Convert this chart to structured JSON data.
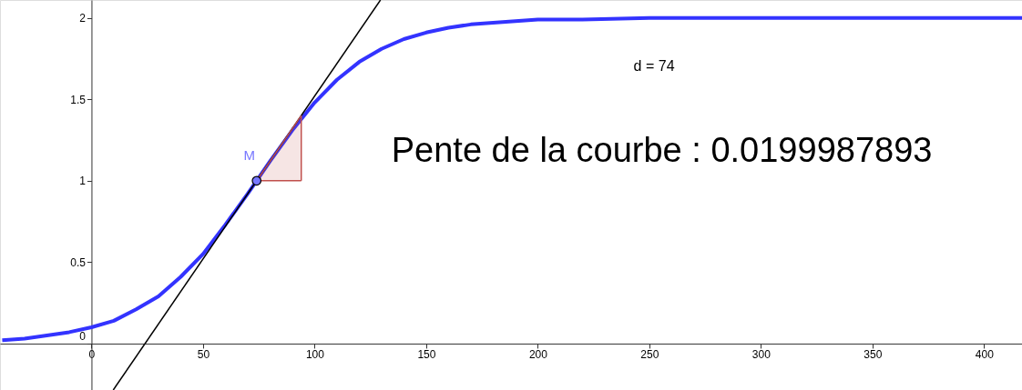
{
  "chart_data": {
    "type": "line",
    "xlim": [
      -41,
      417
    ],
    "ylim": [
      -0.285,
      2.11
    ],
    "xticks": [
      0,
      50,
      100,
      150,
      200,
      250,
      300,
      350,
      400
    ],
    "yticks": [
      0,
      0.5,
      1,
      1.5,
      2
    ],
    "grid": false,
    "line_style": "solid",
    "marker": "none",
    "series": [
      {
        "color": "#3333ff",
        "x": [
          -40,
          -30,
          -20,
          -10,
          0,
          10,
          20,
          30,
          40,
          50,
          60,
          70,
          74,
          80,
          90,
          100,
          110,
          120,
          130,
          140,
          150,
          160,
          170,
          180,
          200,
          220,
          250,
          300,
          350,
          417
        ],
        "values": [
          0.02,
          0.03,
          0.05,
          0.07,
          0.1,
          0.14,
          0.21,
          0.29,
          0.41,
          0.55,
          0.73,
          0.92,
          1,
          1.12,
          1.31,
          1.48,
          1.62,
          1.73,
          1.81,
          1.87,
          1.91,
          1.94,
          1.96,
          1.97,
          1.99,
          1.99,
          2,
          2,
          2,
          2
        ]
      },
      {
        "color": "#000000",
        "x": [
          9.75,
          129.5
        ],
        "values": [
          -0.285,
          2.11
        ]
      },
      {
        "color": "#c0504d",
        "x": [
          74,
          94
        ],
        "values": [
          1,
          1.4
        ],
        "lower": [
          1,
          1
        ],
        "upper": [
          1,
          1.4
        ]
      },
      {
        "color": "#c0504d",
        "x": [
          74,
          94
        ],
        "values": [
          1,
          1
        ]
      },
      {
        "color": "#c0504d",
        "x": [
          94,
          94
        ],
        "values": [
          1,
          1.4
        ]
      },
      {
        "type": "scatter",
        "marker": "circle",
        "color": "#7777ff",
        "x": [
          74
        ],
        "values": [
          1
        ]
      }
    ],
    "annotations": [
      {
        "text": "M",
        "x": 74,
        "y": 1
      },
      "d = 74",
      "Pente de la courbe : 0.0199987893"
    ]
  }
}
